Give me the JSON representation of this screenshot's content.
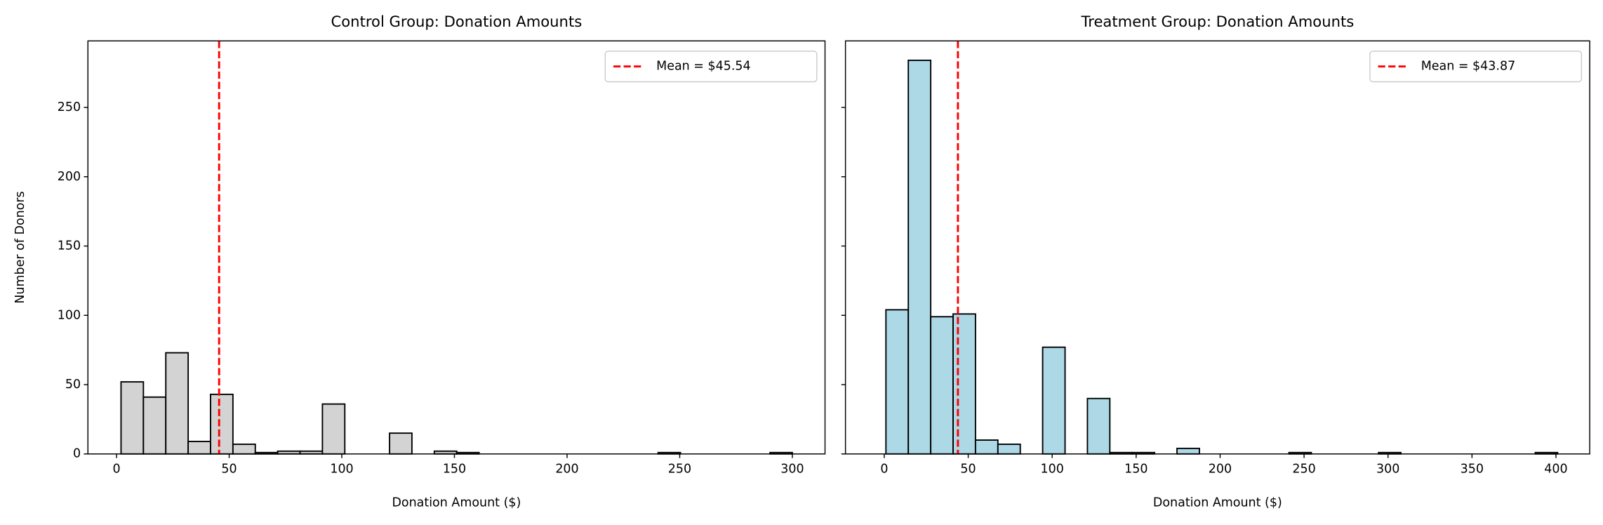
{
  "chart_data": [
    {
      "type": "histogram",
      "title": "Control Group: Donation Amounts",
      "xlabel": "Donation Amount ($)",
      "ylabel": "Number of Donors",
      "bins": [
        2,
        11.93,
        21.87,
        31.8,
        41.73,
        51.67,
        61.6,
        71.53,
        81.47,
        91.4,
        101.33,
        111.27,
        121.2,
        131.13,
        141.07,
        151,
        160.93,
        170.87,
        180.8,
        190.73,
        200.67,
        210.6,
        220.53,
        230.47,
        240.4,
        250.33,
        260.27,
        270.2,
        280.13,
        290.07,
        300
      ],
      "values": [
        52,
        41,
        73,
        9,
        43,
        7,
        1,
        2,
        2,
        36,
        0,
        0,
        15,
        0,
        2,
        1,
        0,
        0,
        0,
        0,
        0,
        0,
        0,
        0,
        1,
        0,
        0,
        0,
        0,
        1
      ],
      "color": "#d3d3d3",
      "edgecolor": "#000000",
      "xlim": [
        -12.7,
        314.5
      ],
      "xticks": [
        0,
        50,
        100,
        150,
        200,
        250,
        300
      ],
      "ylim": [
        0,
        298
      ],
      "yticks": [
        0,
        50,
        100,
        150,
        200,
        250
      ],
      "show_ytick_labels": true,
      "mean_line": {
        "value": 45.54,
        "label": "Mean = $45.54",
        "color": "#ff0000"
      },
      "legend": "upper right"
    },
    {
      "type": "histogram",
      "title": "Treatment Group: Donation Amounts",
      "xlabel": "Donation Amount ($)",
      "bins": [
        1,
        14.33,
        27.67,
        41,
        54.33,
        67.67,
        81,
        94.33,
        107.67,
        121,
        134.33,
        147.67,
        161,
        174.33,
        187.67,
        201,
        214.33,
        227.67,
        241,
        254.33,
        267.67,
        281,
        294.33,
        307.67,
        321,
        334.33,
        347.67,
        361,
        374.33,
        387.67,
        401
      ],
      "values": [
        104,
        284,
        99,
        101,
        10,
        7,
        0,
        77,
        0,
        40,
        1,
        1,
        0,
        4,
        0,
        0,
        0,
        0,
        1,
        0,
        0,
        0,
        1,
        0,
        0,
        0,
        0,
        0,
        0,
        1
      ],
      "color": "#add8e6",
      "edgecolor": "#000000",
      "xlim": [
        -23.1,
        420.1
      ],
      "xticks": [
        0,
        50,
        100,
        150,
        200,
        250,
        300,
        350,
        400
      ],
      "ylim": [
        0,
        298
      ],
      "yticks": [
        0,
        50,
        100,
        150,
        200,
        250
      ],
      "show_ytick_labels": false,
      "mean_line": {
        "value": 43.87,
        "label": "Mean = $43.87",
        "color": "#ff0000"
      },
      "legend": "upper right"
    }
  ]
}
